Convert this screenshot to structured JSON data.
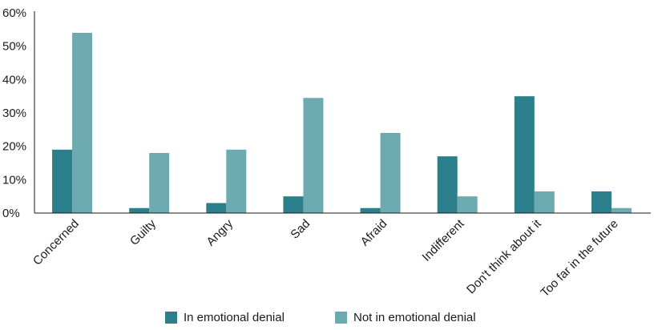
{
  "chart_data": {
    "type": "bar",
    "categories": [
      "Concerned",
      "Guilty",
      "Angry",
      "Sad",
      "Afraid",
      "Indifferent",
      "Don't think about it",
      "Too far in the future"
    ],
    "series": [
      {
        "name": "In emotional denial",
        "values": [
          19,
          1.5,
          3,
          5,
          1.5,
          17,
          35,
          6.5
        ],
        "color": "#2b7f8a"
      },
      {
        "name": "Not in emotional denial",
        "values": [
          54,
          18,
          19,
          34.5,
          24,
          5,
          6.5,
          1.5
        ],
        "color": "#6daab0"
      }
    ],
    "y_ticks": [
      "60%",
      "50%",
      "40%",
      "30%",
      "20%",
      "10%",
      "0%"
    ],
    "ylim": [
      0,
      60
    ],
    "grid": false,
    "legend_position": "bottom"
  }
}
